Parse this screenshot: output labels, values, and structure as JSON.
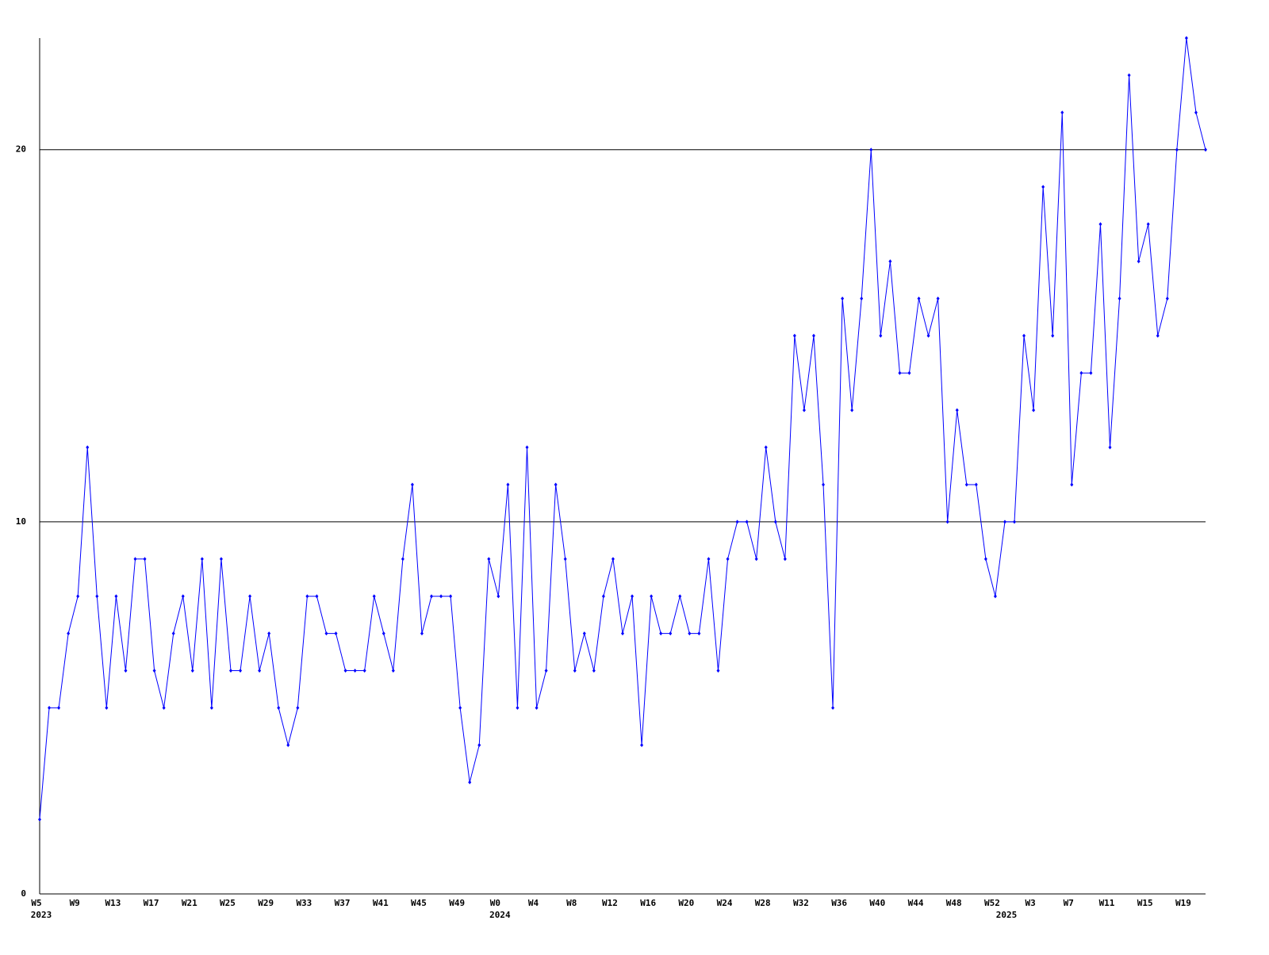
{
  "chart_data": {
    "type": "line",
    "categories": [
      "W5",
      null,
      null,
      null,
      "W9",
      null,
      null,
      null,
      "W13",
      null,
      null,
      null,
      "W17",
      null,
      null,
      null,
      "W21",
      null,
      null,
      null,
      "W25",
      null,
      null,
      null,
      "W29",
      null,
      null,
      null,
      "W33",
      null,
      null,
      null,
      "W37",
      null,
      null,
      null,
      "W41",
      null,
      null,
      null,
      "W45",
      null,
      null,
      null,
      "W49",
      null,
      null,
      null,
      "W0",
      null,
      null,
      null,
      "W4",
      null,
      null,
      null,
      "W8",
      null,
      null,
      null,
      "W12",
      null,
      null,
      null,
      "W16",
      null,
      null,
      null,
      "W20",
      null,
      null,
      null,
      "W24",
      null,
      null,
      null,
      "W28",
      null,
      null,
      null,
      "W32",
      null,
      null,
      null,
      "W36",
      null,
      null,
      null,
      "W40",
      null,
      null,
      null,
      "W44",
      null,
      null,
      null,
      "W48",
      null,
      null,
      null,
      "W52",
      null,
      null,
      null,
      "W3",
      null,
      null,
      null,
      "W7",
      null,
      null,
      null,
      "W11",
      null,
      null,
      null,
      "W15",
      null,
      null,
      null,
      "W19",
      null,
      null
    ],
    "x_groups": [
      {
        "label": "2023",
        "start": 0
      },
      {
        "label": "2024",
        "start": 48
      },
      {
        "label": "2025",
        "start": 101
      }
    ],
    "series": [
      {
        "color": "#0000ff",
        "values": [
          2,
          5,
          5,
          7,
          8,
          12,
          8,
          5,
          8,
          6,
          9,
          9,
          6,
          5,
          7,
          8,
          6,
          9,
          5,
          9,
          6,
          6,
          8,
          6,
          7,
          5,
          4,
          5,
          8,
          8,
          7,
          7,
          6,
          6,
          6,
          8,
          7,
          6,
          9,
          11,
          7,
          8,
          8,
          8,
          5,
          3,
          4,
          9,
          8,
          11,
          5,
          12,
          5,
          6,
          11,
          9,
          6,
          7,
          6,
          8,
          9,
          7,
          8,
          4,
          8,
          7,
          7,
          8,
          7,
          7,
          9,
          6,
          9,
          10,
          10,
          9,
          12,
          10,
          9,
          15,
          13,
          15,
          11,
          5,
          16,
          13,
          16,
          20,
          15,
          17,
          14,
          14,
          16,
          15,
          16,
          10,
          13,
          11,
          11,
          9,
          8,
          10,
          10,
          15,
          13,
          19,
          15,
          21,
          11,
          14,
          14,
          18,
          12,
          16,
          22,
          17,
          18,
          15,
          16,
          20,
          23,
          21,
          20
        ]
      }
    ],
    "ylim": [
      0,
      23
    ],
    "yticks": [
      0,
      10,
      20
    ],
    "grid": true,
    "grid_color": "#000000"
  }
}
